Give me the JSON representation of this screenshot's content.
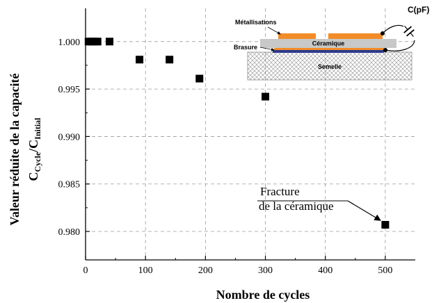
{
  "chart_data": {
    "type": "scatter",
    "xlabel": "Nombre de cycles",
    "ylabel_line1": "Valeur réduite de la capacité",
    "ylabel_c1": "C",
    "ylabel_sub1": "Cycle",
    "ylabel_slash": "/C",
    "ylabel_sub2": "Initial",
    "xlim": [
      0,
      550
    ],
    "ylim": [
      0.977,
      1.0035
    ],
    "xticks": [
      0,
      100,
      200,
      300,
      400,
      500
    ],
    "xtick_labels": [
      "0",
      "100",
      "200",
      "300",
      "400",
      "500"
    ],
    "yticks": [
      0.98,
      0.985,
      0.99,
      0.995,
      1.0
    ],
    "ytick_labels": [
      "0.980",
      "0.985",
      "0.990",
      "0.995",
      "1.000"
    ],
    "grid": "dashed",
    "marker": "square",
    "color": "#000000",
    "points": [
      {
        "x": 5,
        "y": 1.0
      },
      {
        "x": 10,
        "y": 1.0
      },
      {
        "x": 15,
        "y": 1.0
      },
      {
        "x": 20,
        "y": 1.0
      },
      {
        "x": 40,
        "y": 1.0
      },
      {
        "x": 90,
        "y": 0.9981
      },
      {
        "x": 140,
        "y": 0.9981
      },
      {
        "x": 190,
        "y": 0.9961
      },
      {
        "x": 300,
        "y": 0.9942
      },
      {
        "x": 500,
        "y": 0.9807
      }
    ],
    "annotation": {
      "line1": "Fracture",
      "line2": "de la céramique",
      "target_x": 500,
      "target_y": 0.9807
    }
  },
  "inset": {
    "metallisations": "Métallisations",
    "ceramique": "Céramique",
    "brasure": "Brasure",
    "semelle": "Semelle",
    "capacitor": "C(pF)",
    "colors": {
      "metal": "#f28c28",
      "ceramic": "#c8c8c8",
      "braze": "#2b3a8c",
      "base_hatch": "#8c8c8c"
    }
  }
}
